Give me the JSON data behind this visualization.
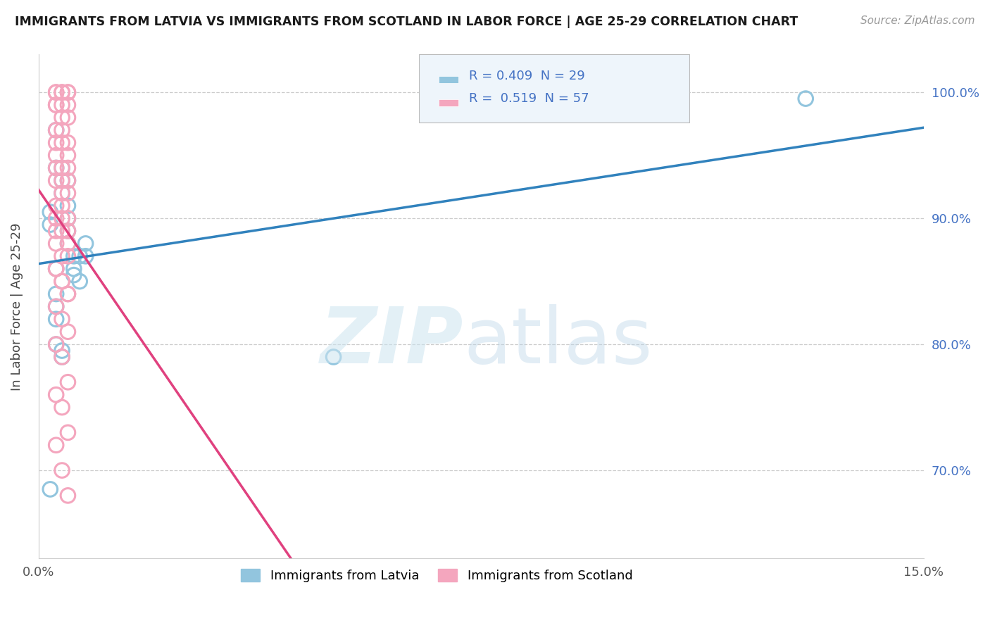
{
  "title": "IMMIGRANTS FROM LATVIA VS IMMIGRANTS FROM SCOTLAND IN LABOR FORCE | AGE 25-29 CORRELATION CHART",
  "source": "Source: ZipAtlas.com",
  "ylabel": "In Labor Force | Age 25-29",
  "legend_label1": "Immigrants from Latvia",
  "legend_label2": "Immigrants from Scotland",
  "R_latvia": 0.409,
  "N_latvia": 29,
  "R_scotland": 0.519,
  "N_scotland": 57,
  "blue_circle_color": "#92c5de",
  "pink_circle_color": "#f4a6be",
  "blue_line_color": "#3182bd",
  "pink_line_color": "#e0417f",
  "blue_label_color": "#4472c4",
  "xmin": 0.0,
  "xmax": 0.15,
  "ymin": 0.63,
  "ymax": 1.03,
  "yticks": [
    0.7,
    0.8,
    0.9,
    1.0
  ],
  "ytick_labels": [
    "70.0%",
    "80.0%",
    "90.0%",
    "100.0%"
  ],
  "latvia_x": [
    0.003,
    0.003,
    0.004,
    0.004,
    0.004,
    0.005,
    0.005,
    0.005,
    0.005,
    0.005,
    0.006,
    0.006,
    0.006,
    0.007,
    0.007,
    0.008,
    0.008,
    0.002,
    0.002,
    0.003,
    0.003,
    0.003,
    0.003,
    0.004,
    0.004,
    0.003,
    0.002,
    0.05,
    0.13
  ],
  "latvia_y": [
    0.97,
    0.94,
    0.94,
    0.93,
    0.92,
    0.93,
    0.91,
    0.9,
    0.89,
    0.88,
    0.87,
    0.86,
    0.855,
    0.87,
    0.85,
    0.88,
    0.87,
    0.905,
    0.895,
    0.84,
    0.83,
    0.82,
    0.8,
    0.79,
    0.795,
    0.86,
    0.685,
    0.79,
    0.995
  ],
  "scotland_x": [
    0.003,
    0.004,
    0.005,
    0.003,
    0.004,
    0.005,
    0.003,
    0.004,
    0.005,
    0.003,
    0.004,
    0.005,
    0.003,
    0.004,
    0.005,
    0.003,
    0.004,
    0.005,
    0.003,
    0.004,
    0.005,
    0.003,
    0.004,
    0.005,
    0.003,
    0.004,
    0.005,
    0.003,
    0.004,
    0.005,
    0.003,
    0.004,
    0.005,
    0.003,
    0.004,
    0.005,
    0.003,
    0.004,
    0.005,
    0.003,
    0.004,
    0.005,
    0.003,
    0.004,
    0.005,
    0.003,
    0.004,
    0.005,
    0.003,
    0.004,
    0.005,
    0.003,
    0.004,
    0.005,
    0.003,
    0.004,
    0.005
  ],
  "scotland_y": [
    1.0,
    1.0,
    1.0,
    1.0,
    1.0,
    1.0,
    0.99,
    0.99,
    0.99,
    0.99,
    0.98,
    0.98,
    0.97,
    0.97,
    0.96,
    0.96,
    0.96,
    0.95,
    0.95,
    0.94,
    0.94,
    0.94,
    0.93,
    0.93,
    0.93,
    0.92,
    0.92,
    0.91,
    0.91,
    0.9,
    0.9,
    0.9,
    0.89,
    0.89,
    0.89,
    0.88,
    0.88,
    0.87,
    0.87,
    0.86,
    0.85,
    0.84,
    0.83,
    0.82,
    0.81,
    0.8,
    0.79,
    0.77,
    0.76,
    0.75,
    0.73,
    0.72,
    0.7,
    0.68,
    0.86,
    0.85,
    0.84
  ]
}
